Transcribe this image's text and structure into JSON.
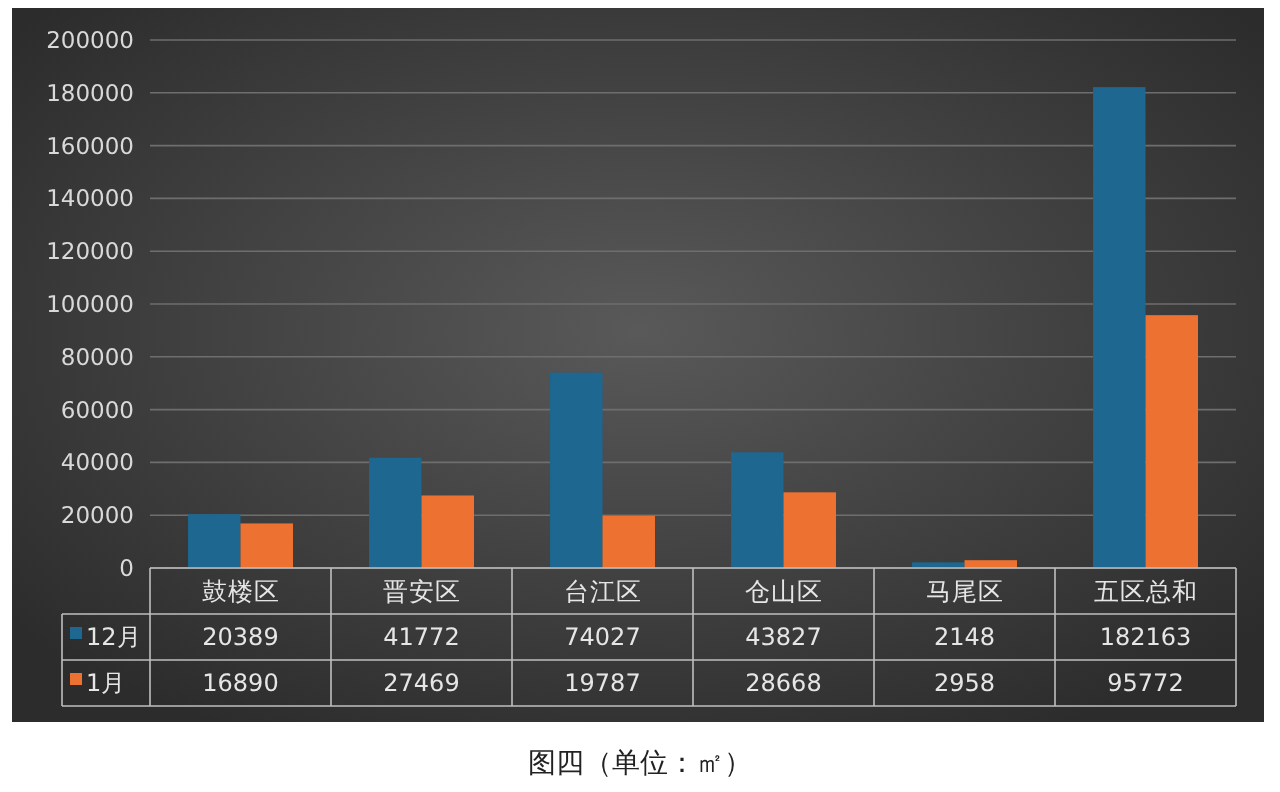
{
  "chart_data": {
    "type": "bar",
    "categories": [
      "鼓楼区",
      "晋安区",
      "台江区",
      "仓山区",
      "马尾区",
      "五区总和"
    ],
    "series": [
      {
        "name": "12月",
        "color": "#1d6790",
        "values": [
          20389,
          41772,
          74027,
          43827,
          2148,
          182163
        ]
      },
      {
        "name": "1月",
        "color": "#ed7232",
        "values": [
          16890,
          27469,
          19787,
          28668,
          2958,
          95772
        ]
      }
    ],
    "ylim": [
      0,
      200000
    ],
    "yticks": [
      0,
      20000,
      40000,
      60000,
      80000,
      100000,
      120000,
      140000,
      160000,
      180000,
      200000
    ],
    "grid": "y",
    "legend": "bottom",
    "data_labels": true,
    "annotations": [
      "图四（单位：㎡）"
    ]
  }
}
